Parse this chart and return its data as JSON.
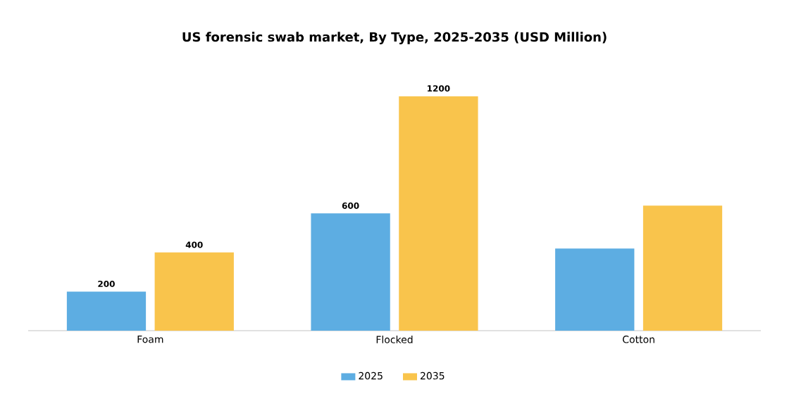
{
  "chart_data": {
    "type": "bar",
    "title": "US forensic swab market, By Type, 2025-2035 (USD Million)",
    "categories": [
      "Foam",
      "Flocked",
      "Cotton"
    ],
    "series": [
      {
        "name": "2025",
        "color": "#5dade2",
        "values": [
          200,
          600,
          420
        ],
        "value_labels": [
          "200",
          "600",
          null
        ]
      },
      {
        "name": "2035",
        "color": "#f9c44c",
        "values": [
          400,
          1200,
          640
        ],
        "value_labels": [
          "400",
          "1200",
          null
        ]
      }
    ],
    "tick_labels": "x",
    "legend": "bottom"
  }
}
